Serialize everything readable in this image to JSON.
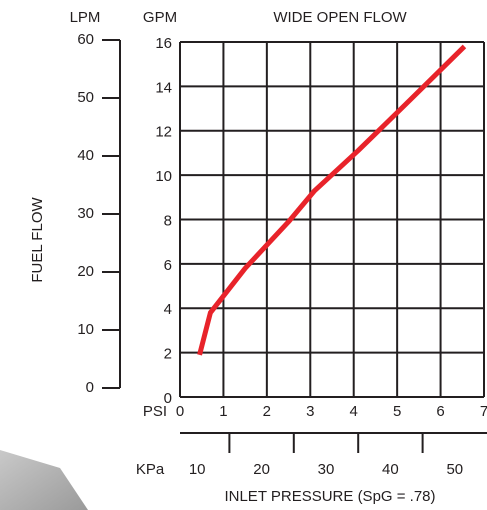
{
  "chart_data": {
    "type": "line",
    "title": "WIDE OPEN FLOW",
    "y_label": "FUEL FLOW",
    "x_label": "INLET PRESSURE (SpG = .78)",
    "x_unit": "PSI",
    "y_unit": "GPM",
    "x": [
      0.45,
      0.7,
      1.5,
      2.5,
      3.1,
      4.1,
      5.2,
      6.55
    ],
    "series": [
      {
        "color": "#e8232a",
        "values": [
          1.9,
          3.8,
          5.8,
          7.9,
          9.3,
          11.1,
          13.2,
          15.8
        ]
      }
    ],
    "xlim": [
      0,
      7
    ],
    "xticks": [
      0,
      1,
      2,
      3,
      4,
      5,
      6,
      7
    ],
    "ylim": [
      0,
      16
    ],
    "yticks": [
      0,
      2,
      4,
      6,
      8,
      10,
      12,
      14,
      16
    ],
    "grid": true,
    "lpm_axis": {
      "label": "LPM",
      "lim": [
        0,
        60
      ],
      "ticks": [
        0,
        10,
        20,
        30,
        40,
        50,
        60
      ]
    },
    "kpa_axis": {
      "label": "KPa",
      "lim": [
        5,
        55
      ],
      "ticks": [
        10,
        20,
        30,
        40,
        50
      ],
      "minor_ticks": [
        15,
        25,
        35,
        45
      ]
    }
  }
}
